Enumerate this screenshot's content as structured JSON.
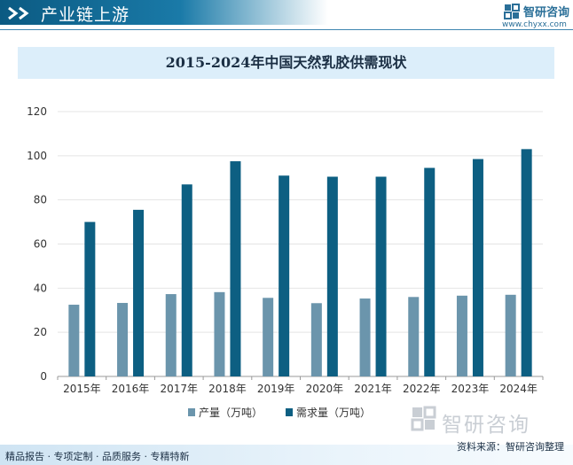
{
  "header": {
    "section_title": "产业链上游",
    "brand_name": "智研咨询",
    "brand_url": "www.chyxx.com"
  },
  "chart_data": {
    "type": "bar",
    "title": "2015-2024年中国天然乳胶供需现状",
    "categories": [
      "2015年",
      "2016年",
      "2017年",
      "2018年",
      "2019年",
      "2020年",
      "2021年",
      "2022年",
      "2023年",
      "2024年"
    ],
    "series": [
      {
        "name": "产量（万吨）",
        "color": "#6b95ac",
        "values": [
          32.5,
          33.3,
          37.3,
          38.2,
          35.6,
          33.2,
          35.3,
          36.0,
          36.6,
          37.0
        ]
      },
      {
        "name": "需求量（万吨）",
        "color": "#0d5f82",
        "values": [
          70.0,
          75.5,
          87.0,
          97.5,
          91.0,
          90.5,
          90.5,
          94.5,
          98.5,
          103.0
        ]
      }
    ],
    "ylim": [
      0,
      120
    ],
    "yticks": [
      0,
      20,
      40,
      60,
      80,
      100,
      120
    ],
    "grid": true,
    "legend_position": "bottom"
  },
  "footer": {
    "left_text": "精品报告 · 专项定制 · 品质服务 · 专精特新",
    "source_text": "资料来源：智研咨询整理"
  },
  "watermark": {
    "text": "智研咨询"
  }
}
